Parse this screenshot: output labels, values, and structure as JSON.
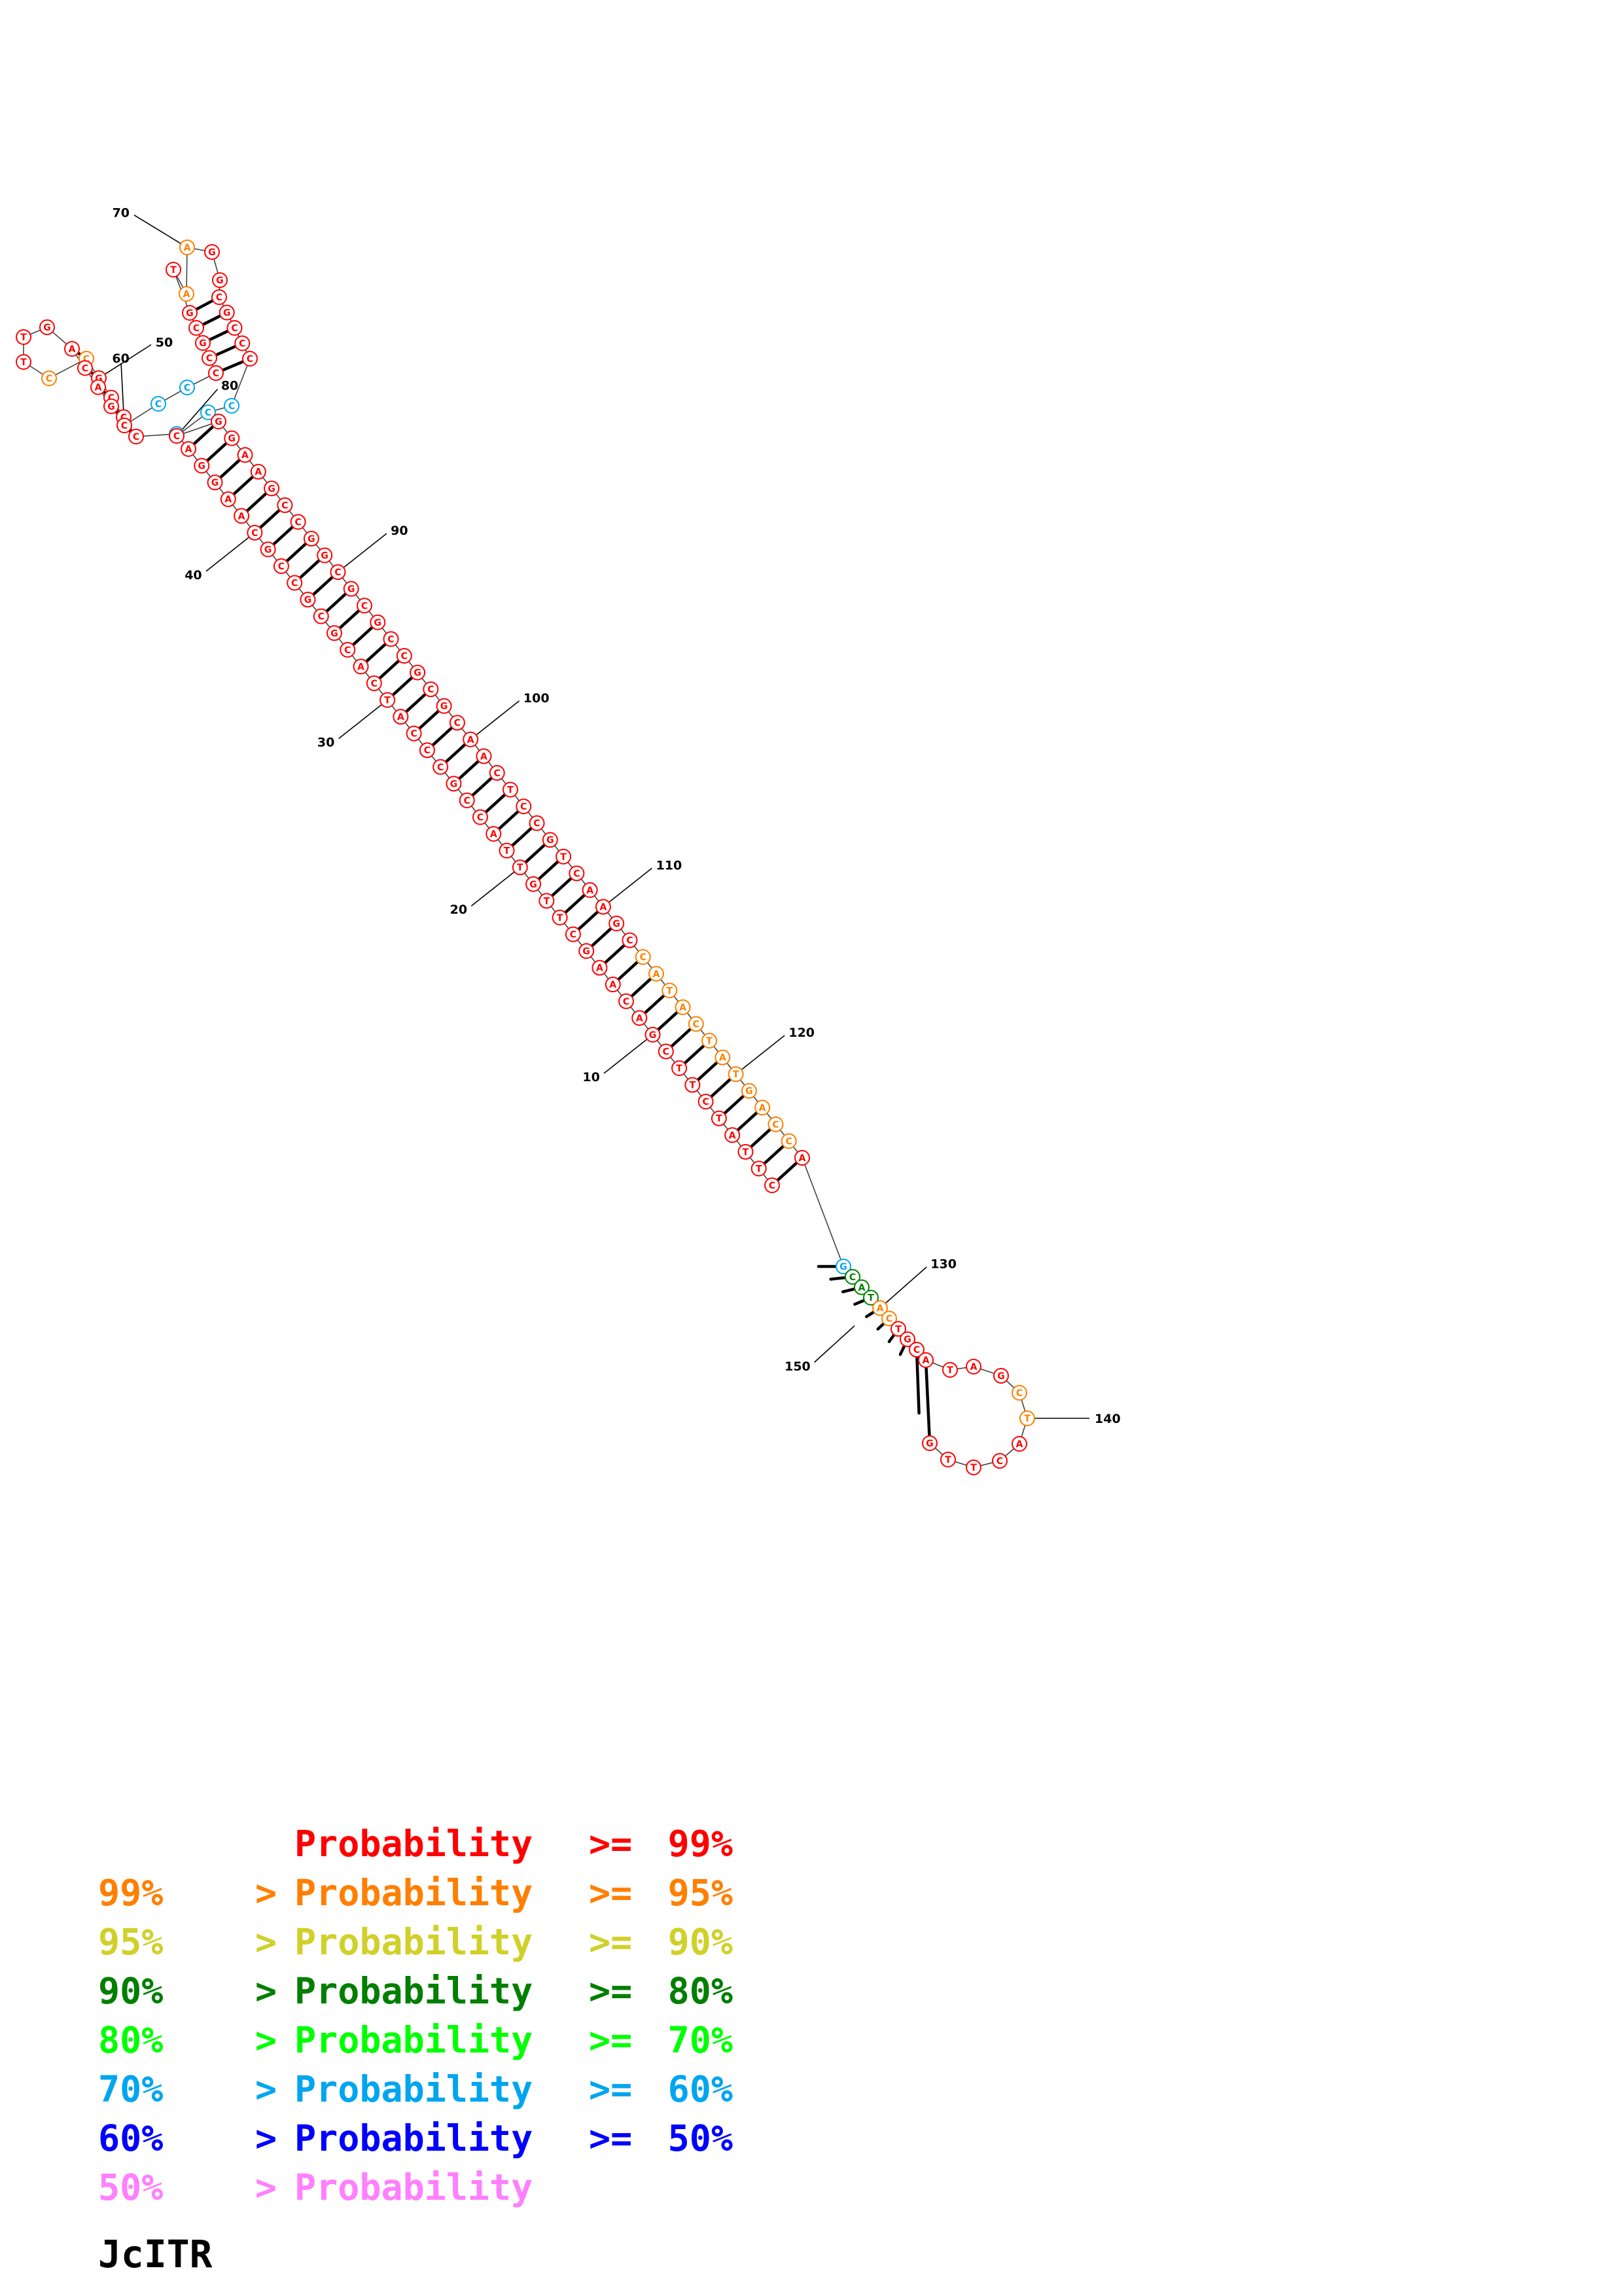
{
  "title": "JcITR",
  "sequence": "CTTATCTTCGACAAGCTTGTTACCGCCCATCACGCGCCGCAAGGACCCCGCCTTGACAGCCCCCGCGTAAGGCGCCCCCCGGAAGCCGGCGCGCCGCGCAACTCCGTCAAGCCATACTATGACCAGCATACTGCATAGCTACTTG",
  "pairs": [
    [
      1,
      125
    ],
    [
      2,
      124
    ],
    [
      3,
      123
    ],
    [
      4,
      122
    ],
    [
      5,
      121
    ],
    [
      6,
      120
    ],
    [
      7,
      119
    ],
    [
      8,
      118
    ],
    [
      9,
      117
    ],
    [
      10,
      116
    ],
    [
      11,
      115
    ],
    [
      12,
      114
    ],
    [
      13,
      113
    ],
    [
      14,
      112
    ],
    [
      15,
      111
    ],
    [
      16,
      110
    ],
    [
      17,
      109
    ],
    [
      18,
      108
    ],
    [
      19,
      107
    ],
    [
      20,
      106
    ],
    [
      21,
      105
    ],
    [
      22,
      104
    ],
    [
      23,
      103
    ],
    [
      24,
      102
    ],
    [
      25,
      101
    ],
    [
      26,
      100
    ],
    [
      27,
      99
    ],
    [
      28,
      98
    ],
    [
      29,
      97
    ],
    [
      30,
      96
    ],
    [
      31,
      95
    ],
    [
      32,
      94
    ],
    [
      33,
      93
    ],
    [
      34,
      92
    ],
    [
      35,
      91
    ],
    [
      36,
      90
    ],
    [
      37,
      89
    ],
    [
      38,
      88
    ],
    [
      39,
      87
    ],
    [
      40,
      86
    ],
    [
      41,
      85
    ],
    [
      42,
      84
    ],
    [
      43,
      83
    ],
    [
      44,
      82
    ],
    [
      45,
      81
    ],
    [
      47,
      60
    ],
    [
      48,
      59
    ],
    [
      49,
      58
    ],
    [
      50,
      57
    ],
    [
      51,
      56
    ],
    [
      63,
      77
    ],
    [
      64,
      76
    ],
    [
      65,
      75
    ],
    [
      66,
      74
    ],
    [
      67,
      73
    ],
    [
      126,
      154
    ],
    [
      127,
      153
    ],
    [
      128,
      152
    ],
    [
      129,
      151
    ],
    [
      130,
      150
    ],
    [
      131,
      149
    ],
    [
      132,
      148
    ],
    [
      133,
      147
    ],
    [
      134,
      146
    ],
    [
      135,
      145
    ]
  ],
  "nucleotide_colors": {
    "46": "#00a5ef",
    "61": "#00a5ef",
    "62": "#00a5ef",
    "78": "#00a5ef",
    "79": "#00a5ef",
    "126": "#00a5ef",
    "113": "#ff7f00",
    "114": "#ff7f00",
    "115": "#ff7f00",
    "116": "#ff7f00",
    "117": "#ff7f00",
    "118": "#ff7f00",
    "119": "#ff7f00",
    "120": "#ff7f00",
    "121": "#ff7f00",
    "122": "#ff7f00",
    "123": "#ff7f00",
    "124": "#ff7f00",
    "51": "#ff7f00",
    "52": "#ff7f00",
    "69": "#ff7f00",
    "70": "#ff7f00",
    "130": "#ff7f00",
    "131": "#ff7f00",
    "139": "#ff7f00",
    "140": "#ff7f00",
    "148": "#ff7f00",
    "152": "#d8d82a",
    "153": "#d8d82a",
    "154": "#d8d82a",
    "127": "#007f00",
    "128": "#007f00",
    "129": "#007f00"
  },
  "default_color": "#ff0000",
  "position_labels": [
    "10",
    "20",
    "30",
    "40",
    "50",
    "60",
    "70",
    "80",
    "90",
    "100",
    "110",
    "120",
    "130",
    "140",
    "150"
  ],
  "legend": [
    {
      "prefix": "",
      "gt": "",
      "word": "Probability",
      "ge": ">=",
      "suffix": "99%",
      "color": "#ff0000"
    },
    {
      "prefix": "99%",
      "gt": ">",
      "word": "Probability",
      "ge": ">=",
      "suffix": "95%",
      "color": "#ff7f00"
    },
    {
      "prefix": "95%",
      "gt": ">",
      "word": "Probability",
      "ge": ">=",
      "suffix": "90%",
      "color": "#d0d02a"
    },
    {
      "prefix": "90%",
      "gt": ">",
      "word": "Probability",
      "ge": ">=",
      "suffix": "80%",
      "color": "#007f00"
    },
    {
      "prefix": "80%",
      "gt": ">",
      "word": "Probability",
      "ge": ">=",
      "suffix": "70%",
      "color": "#00ff00"
    },
    {
      "prefix": "70%",
      "gt": ">",
      "word": "Probability",
      "ge": ">=",
      "suffix": "60%",
      "color": "#00a5ef"
    },
    {
      "prefix": "60%",
      "gt": ">",
      "word": "Probability",
      "ge": ">=",
      "suffix": "50%",
      "color": "#0000ff"
    },
    {
      "prefix": "50%",
      "gt": ">",
      "word": "Probability",
      "ge": "",
      "suffix": "",
      "color": "#ff7fff"
    }
  ]
}
